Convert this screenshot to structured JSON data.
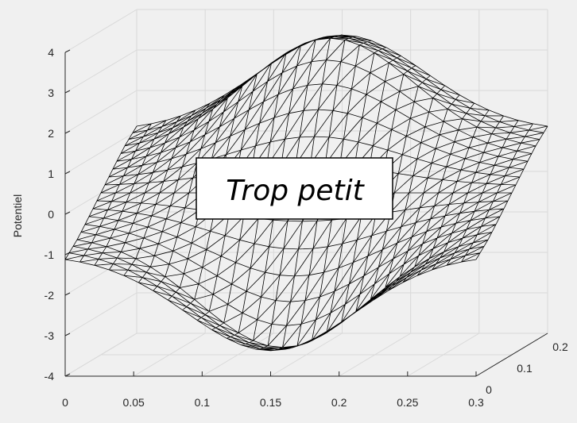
{
  "chart_data": {
    "type": "surface-mesh",
    "ylabel_z": "Potentiel",
    "x_ticks": [
      "0",
      "0.05",
      "0.1",
      "0.15",
      "0.2",
      "0.25",
      "0.3"
    ],
    "y_ticks": [
      "0",
      "0.1",
      "0.2"
    ],
    "z_ticks": [
      "4",
      "3",
      "2",
      "1",
      "0",
      "-1",
      "-2",
      "-3",
      "-4"
    ],
    "xlim": [
      0,
      0.3
    ],
    "ylim": [
      0,
      0.2
    ],
    "zlim": [
      -4,
      4
    ],
    "grid": true,
    "annotation": "Trop petit",
    "colors": {
      "background": "#f0f0f0",
      "mesh": "#000000",
      "grid": "#d9d9d9"
    }
  }
}
